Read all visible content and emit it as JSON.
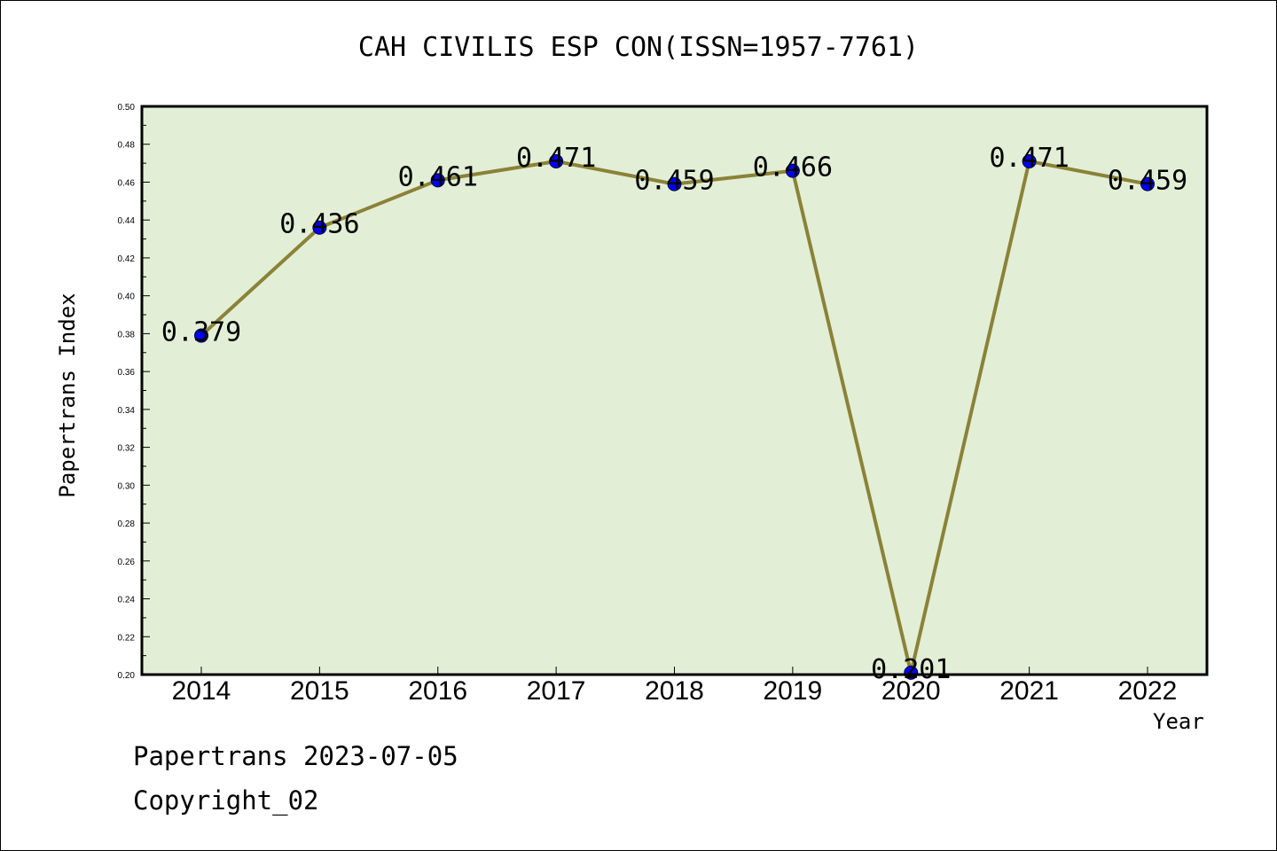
{
  "chart_data": {
    "type": "line",
    "title": "CAH CIVILIS ESP CON(ISSN=1957-7761)",
    "xlabel": "Year",
    "ylabel": "Papertrans Index",
    "categories": [
      "2014",
      "2015",
      "2016",
      "2017",
      "2018",
      "2019",
      "2020",
      "2021",
      "2022"
    ],
    "series": [
      {
        "values": [
          0.379,
          0.436,
          0.461,
          0.471,
          0.459,
          0.466,
          0.201,
          0.471,
          0.459
        ],
        "data_labels": [
          "0.379",
          "0.436",
          "0.461",
          "0.471",
          "0.459",
          "0.466",
          "0.201",
          "0.471",
          "0.459"
        ]
      }
    ],
    "ylim": [
      0.2,
      0.5
    ],
    "yticks": [
      "0.20",
      "0.22",
      "0.24",
      "0.26",
      "0.28",
      "0.30",
      "0.32",
      "0.34",
      "0.36",
      "0.38",
      "0.40",
      "0.42",
      "0.44",
      "0.46",
      "0.48",
      "0.50"
    ],
    "grid": false,
    "legend": "none",
    "colors": {
      "plot_background": "#e2efd6",
      "line": "#8b8238",
      "marker": "#0000ff"
    }
  },
  "footer": {
    "date_text": "Papertrans 2023-07-05",
    "copyright_text": "Copyright_02"
  }
}
